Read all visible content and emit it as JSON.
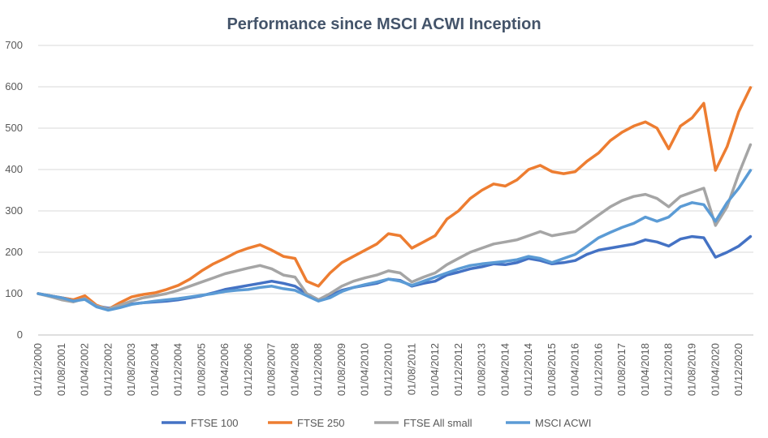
{
  "chart_data": {
    "type": "line",
    "title": "Performance since MSCI ACWI Inception",
    "xlabel": "",
    "ylabel": "",
    "ylim": [
      0,
      700
    ],
    "yticks": [
      0,
      100,
      200,
      300,
      400,
      500,
      600,
      700
    ],
    "xticks": [
      "01/12/2000",
      "01/08/2001",
      "01/04/2002",
      "01/12/2002",
      "01/08/2003",
      "01/04/2004",
      "01/12/2004",
      "01/08/2005",
      "01/04/2006",
      "01/12/2006",
      "01/08/2007",
      "01/04/2008",
      "01/12/2008",
      "01/08/2009",
      "01/04/2010",
      "01/12/2010",
      "01/08/2011",
      "01/04/2012",
      "01/12/2012",
      "01/08/2013",
      "01/04/2014",
      "01/12/2014",
      "01/08/2015",
      "01/04/2016",
      "01/12/2016",
      "01/08/2017",
      "01/04/2018",
      "01/12/2018",
      "01/08/2019",
      "01/04/2020",
      "01/12/2020"
    ],
    "x": [
      "01/12/2000",
      "01/04/2001",
      "01/08/2001",
      "01/12/2001",
      "01/04/2002",
      "01/08/2002",
      "01/12/2002",
      "01/04/2003",
      "01/08/2003",
      "01/12/2003",
      "01/04/2004",
      "01/08/2004",
      "01/12/2004",
      "01/04/2005",
      "01/08/2005",
      "01/12/2005",
      "01/04/2006",
      "01/08/2006",
      "01/12/2006",
      "01/04/2007",
      "01/08/2007",
      "01/12/2007",
      "01/04/2008",
      "01/08/2008",
      "01/12/2008",
      "01/04/2009",
      "01/08/2009",
      "01/12/2009",
      "01/04/2010",
      "01/08/2010",
      "01/12/2010",
      "01/04/2011",
      "01/08/2011",
      "01/12/2011",
      "01/04/2012",
      "01/08/2012",
      "01/12/2012",
      "01/04/2013",
      "01/08/2013",
      "01/12/2013",
      "01/04/2014",
      "01/08/2014",
      "01/12/2014",
      "01/04/2015",
      "01/08/2015",
      "01/12/2015",
      "01/04/2016",
      "01/08/2016",
      "01/12/2016",
      "01/04/2017",
      "01/08/2017",
      "01/12/2017",
      "01/04/2018",
      "01/08/2018",
      "01/12/2018",
      "01/04/2019",
      "01/08/2019",
      "01/12/2019",
      "01/04/2020",
      "01/08/2020",
      "01/12/2020",
      "01/04/2021"
    ],
    "series": [
      {
        "name": "FTSE 100",
        "color": "#4472c4",
        "values": [
          100,
          95,
          90,
          85,
          88,
          70,
          65,
          68,
          75,
          78,
          80,
          82,
          85,
          90,
          95,
          102,
          110,
          115,
          120,
          125,
          130,
          125,
          118,
          100,
          85,
          95,
          108,
          115,
          120,
          125,
          135,
          132,
          118,
          125,
          130,
          145,
          152,
          160,
          165,
          172,
          170,
          175,
          185,
          180,
          172,
          175,
          180,
          195,
          205,
          210,
          215,
          220,
          230,
          225,
          215,
          232,
          238,
          235,
          188,
          200,
          215,
          238
        ]
      },
      {
        "name": "FTSE 250",
        "color": "#ed7d31",
        "values": [
          100,
          95,
          90,
          85,
          95,
          72,
          62,
          78,
          92,
          98,
          102,
          110,
          120,
          135,
          155,
          172,
          185,
          200,
          210,
          218,
          205,
          190,
          185,
          130,
          118,
          150,
          175,
          190,
          205,
          220,
          245,
          240,
          210,
          225,
          240,
          280,
          300,
          330,
          350,
          365,
          360,
          375,
          400,
          410,
          395,
          390,
          395,
          420,
          440,
          470,
          490,
          505,
          515,
          500,
          450,
          505,
          525,
          560,
          398,
          455,
          540,
          598
        ]
      },
      {
        "name": "FTSE All small",
        "color": "#a5a5a5",
        "values": [
          100,
          93,
          85,
          80,
          88,
          70,
          63,
          72,
          82,
          90,
          95,
          100,
          108,
          118,
          128,
          138,
          148,
          155,
          162,
          168,
          160,
          145,
          140,
          100,
          85,
          100,
          118,
          130,
          138,
          145,
          155,
          150,
          128,
          140,
          150,
          170,
          185,
          200,
          210,
          220,
          225,
          230,
          240,
          250,
          240,
          245,
          250,
          270,
          290,
          310,
          325,
          335,
          340,
          330,
          310,
          335,
          345,
          355,
          265,
          310,
          390,
          460
        ]
      },
      {
        "name": "MSCI ACWI",
        "color": "#5b9bd5",
        "values": [
          100,
          95,
          90,
          82,
          86,
          68,
          60,
          66,
          74,
          78,
          82,
          85,
          88,
          92,
          96,
          100,
          105,
          108,
          110,
          115,
          118,
          112,
          108,
          95,
          82,
          90,
          105,
          115,
          122,
          128,
          135,
          130,
          120,
          130,
          140,
          150,
          160,
          168,
          172,
          175,
          178,
          182,
          190,
          185,
          175,
          185,
          195,
          215,
          235,
          248,
          260,
          270,
          285,
          275,
          285,
          310,
          320,
          315,
          275,
          320,
          355,
          398
        ]
      }
    ],
    "legend": "bottom",
    "grid": true
  }
}
